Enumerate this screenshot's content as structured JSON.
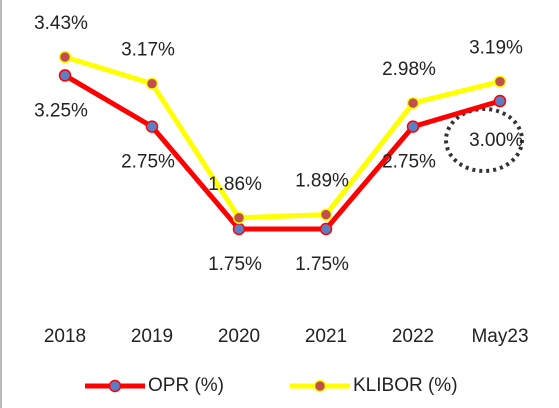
{
  "chart_data": {
    "type": "line",
    "categories": [
      "2018",
      "2019",
      "2020",
      "2021",
      "2022",
      "May23"
    ],
    "series": [
      {
        "name": "OPR (%)",
        "color": "#ff0000",
        "marker_color": "#5b7fc4",
        "values": [
          3.25,
          2.75,
          1.75,
          1.75,
          2.75,
          3.0
        ],
        "value_labels": [
          "3.25%",
          "2.75%",
          "1.75%",
          "1.75%",
          "2.75%",
          "3.00%"
        ]
      },
      {
        "name": "KLIBOR (%)",
        "color": "#ffff00",
        "marker_color": "#c0504d",
        "values": [
          3.43,
          3.17,
          1.86,
          1.89,
          2.98,
          3.19
        ],
        "value_labels": [
          "3.43%",
          "3.17%",
          "1.86%",
          "1.89%",
          "2.98%",
          "3.19%"
        ]
      }
    ],
    "legend": "bottom"
  }
}
